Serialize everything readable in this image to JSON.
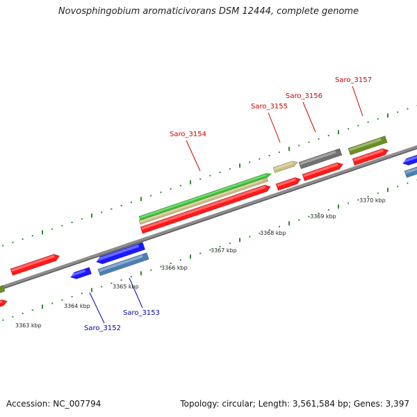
{
  "title": "Novosphingobium aromaticivorans DSM 12444, complete genome",
  "footer": {
    "accession": "Accession: NC_007794",
    "summary": "Topology: circular; Length: 3,561,584 bp; Genes: 3,397"
  },
  "colors": {
    "forward_label": "#cc0000",
    "reverse_label": "#0000aa",
    "backbone": "#8c8c8c",
    "tick": "#2e8b2e"
  },
  "tick_labels": [
    "3363 kbp",
    "3364 kbp",
    "3365 kbp",
    "3366 kbp",
    "3367 kbp",
    "3368 kbp",
    "3369 kbp",
    "3370 kbp"
  ],
  "gene_labels": [
    {
      "name": "Saro_3152",
      "strand": "reverse"
    },
    {
      "name": "Saro_3153",
      "strand": "reverse"
    },
    {
      "name": "Saro_3154",
      "strand": "forward"
    },
    {
      "name": "Saro_3155",
      "strand": "forward"
    },
    {
      "name": "Saro_3156",
      "strand": "forward"
    },
    {
      "name": "Saro_3157",
      "strand": "forward"
    }
  ]
}
